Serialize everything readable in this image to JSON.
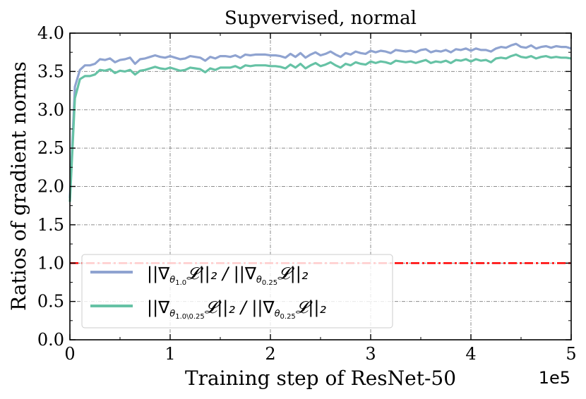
{
  "chart_data": {
    "type": "line",
    "title": "Supvervised, normal",
    "xlabel": "Training step of ResNet-50",
    "ylabel": "Ratios of gradient norms",
    "x_multiplier_label": "1e5",
    "xlim": [
      0,
      5
    ],
    "ylim": [
      0.0,
      4.0
    ],
    "x_ticks": [
      0,
      1,
      2,
      3,
      4,
      5
    ],
    "x_tick_labels": [
      "0",
      "1",
      "2",
      "3",
      "4",
      "5"
    ],
    "y_ticks": [
      0.0,
      0.5,
      1.0,
      1.5,
      2.0,
      2.5,
      3.0,
      3.5,
      4.0
    ],
    "y_tick_labels": [
      "0.0",
      "0.5",
      "1.0",
      "1.5",
      "2.0",
      "2.5",
      "3.0",
      "3.5",
      "4.0"
    ],
    "grid": true,
    "legend_position": "bottom-left",
    "reference_line": {
      "y": 1.0,
      "color": "#ff0000",
      "style": "dash-dot"
    },
    "series": [
      {
        "name": "||∇θ1.0 L||2 / ||∇θ0.25 L||2",
        "legend_text": "||∇",
        "legend_sub": "θ",
        "legend_subsub": "1.0",
        "legend_rest": "𝓛||₂ / ||∇",
        "legend_sub2": "θ",
        "legend_subsub2": "0.25",
        "legend_rest2": "𝓛||₂",
        "color": "#8fa3d0",
        "x": [
          0.0,
          0.05,
          0.1,
          0.15,
          0.2,
          0.25,
          0.3,
          0.35,
          0.4,
          0.45,
          0.5,
          0.55,
          0.6,
          0.65,
          0.7,
          0.75,
          0.8,
          0.85,
          0.9,
          0.95,
          1.0,
          1.05,
          1.1,
          1.15,
          1.2,
          1.25,
          1.3,
          1.35,
          1.4,
          1.45,
          1.5,
          1.55,
          1.6,
          1.65,
          1.7,
          1.75,
          1.8,
          1.85,
          1.9,
          1.95,
          2.0,
          2.05,
          2.1,
          2.15,
          2.2,
          2.25,
          2.3,
          2.35,
          2.4,
          2.45,
          2.5,
          2.55,
          2.6,
          2.65,
          2.7,
          2.75,
          2.8,
          2.85,
          2.9,
          2.95,
          3.0,
          3.05,
          3.1,
          3.15,
          3.2,
          3.25,
          3.3,
          3.35,
          3.4,
          3.45,
          3.5,
          3.55,
          3.6,
          3.65,
          3.7,
          3.75,
          3.8,
          3.85,
          3.9,
          3.95,
          4.0,
          4.05,
          4.1,
          4.15,
          4.2,
          4.25,
          4.3,
          4.35,
          4.4,
          4.45,
          4.5,
          4.55,
          4.6,
          4.65,
          4.7,
          4.75,
          4.8,
          4.85,
          4.9,
          4.95,
          5.0
        ],
        "y": [
          1.85,
          3.3,
          3.52,
          3.58,
          3.58,
          3.6,
          3.66,
          3.65,
          3.67,
          3.62,
          3.65,
          3.66,
          3.68,
          3.6,
          3.66,
          3.67,
          3.69,
          3.71,
          3.69,
          3.68,
          3.7,
          3.68,
          3.66,
          3.67,
          3.7,
          3.69,
          3.68,
          3.64,
          3.69,
          3.67,
          3.7,
          3.7,
          3.69,
          3.71,
          3.68,
          3.72,
          3.71,
          3.72,
          3.72,
          3.72,
          3.71,
          3.71,
          3.7,
          3.68,
          3.73,
          3.69,
          3.74,
          3.68,
          3.72,
          3.75,
          3.71,
          3.73,
          3.76,
          3.72,
          3.69,
          3.74,
          3.72,
          3.76,
          3.74,
          3.73,
          3.77,
          3.75,
          3.77,
          3.76,
          3.74,
          3.78,
          3.77,
          3.76,
          3.77,
          3.75,
          3.78,
          3.79,
          3.75,
          3.77,
          3.76,
          3.78,
          3.75,
          3.79,
          3.78,
          3.8,
          3.77,
          3.8,
          3.78,
          3.78,
          3.76,
          3.8,
          3.82,
          3.81,
          3.84,
          3.86,
          3.82,
          3.81,
          3.84,
          3.8,
          3.82,
          3.83,
          3.81,
          3.83,
          3.82,
          3.82,
          3.8
        ]
      },
      {
        "name": "||∇θ1.0\\0.25 L||2 / ||∇θ0.25 L||2",
        "legend_text": "||∇",
        "legend_sub": "θ",
        "legend_subsub": "1.0\\0.25",
        "legend_rest": "𝓛||₂ / ||∇",
        "legend_sub2": "θ",
        "legend_subsub2": "0.25",
        "legend_rest2": "𝓛||₂",
        "color": "#66c2a5",
        "x": [
          0.0,
          0.05,
          0.1,
          0.15,
          0.2,
          0.25,
          0.3,
          0.35,
          0.4,
          0.45,
          0.5,
          0.55,
          0.6,
          0.65,
          0.7,
          0.75,
          0.8,
          0.85,
          0.9,
          0.95,
          1.0,
          1.05,
          1.1,
          1.15,
          1.2,
          1.25,
          1.3,
          1.35,
          1.4,
          1.45,
          1.5,
          1.55,
          1.6,
          1.65,
          1.7,
          1.75,
          1.8,
          1.85,
          1.9,
          1.95,
          2.0,
          2.05,
          2.1,
          2.15,
          2.2,
          2.25,
          2.3,
          2.35,
          2.4,
          2.45,
          2.5,
          2.55,
          2.6,
          2.65,
          2.7,
          2.75,
          2.8,
          2.85,
          2.9,
          2.95,
          3.0,
          3.05,
          3.1,
          3.15,
          3.2,
          3.25,
          3.3,
          3.35,
          3.4,
          3.45,
          3.5,
          3.55,
          3.6,
          3.65,
          3.7,
          3.75,
          3.8,
          3.85,
          3.9,
          3.95,
          4.0,
          4.05,
          4.1,
          4.15,
          4.2,
          4.25,
          4.3,
          4.35,
          4.4,
          4.45,
          4.5,
          4.55,
          4.6,
          4.65,
          4.7,
          4.75,
          4.8,
          4.85,
          4.9,
          4.95,
          5.0
        ],
        "y": [
          1.8,
          3.15,
          3.4,
          3.44,
          3.44,
          3.46,
          3.52,
          3.51,
          3.53,
          3.48,
          3.51,
          3.5,
          3.52,
          3.46,
          3.51,
          3.52,
          3.54,
          3.56,
          3.54,
          3.53,
          3.55,
          3.53,
          3.51,
          3.52,
          3.55,
          3.54,
          3.53,
          3.49,
          3.54,
          3.52,
          3.55,
          3.55,
          3.55,
          3.57,
          3.54,
          3.58,
          3.57,
          3.58,
          3.58,
          3.58,
          3.57,
          3.57,
          3.56,
          3.54,
          3.59,
          3.55,
          3.6,
          3.54,
          3.58,
          3.61,
          3.57,
          3.59,
          3.62,
          3.58,
          3.55,
          3.6,
          3.58,
          3.62,
          3.6,
          3.59,
          3.63,
          3.61,
          3.63,
          3.62,
          3.6,
          3.64,
          3.63,
          3.62,
          3.63,
          3.61,
          3.63,
          3.65,
          3.61,
          3.63,
          3.62,
          3.64,
          3.61,
          3.65,
          3.64,
          3.66,
          3.63,
          3.66,
          3.64,
          3.65,
          3.62,
          3.67,
          3.68,
          3.67,
          3.7,
          3.72,
          3.69,
          3.68,
          3.7,
          3.67,
          3.69,
          3.7,
          3.68,
          3.69,
          3.68,
          3.68,
          3.67
        ]
      }
    ]
  }
}
